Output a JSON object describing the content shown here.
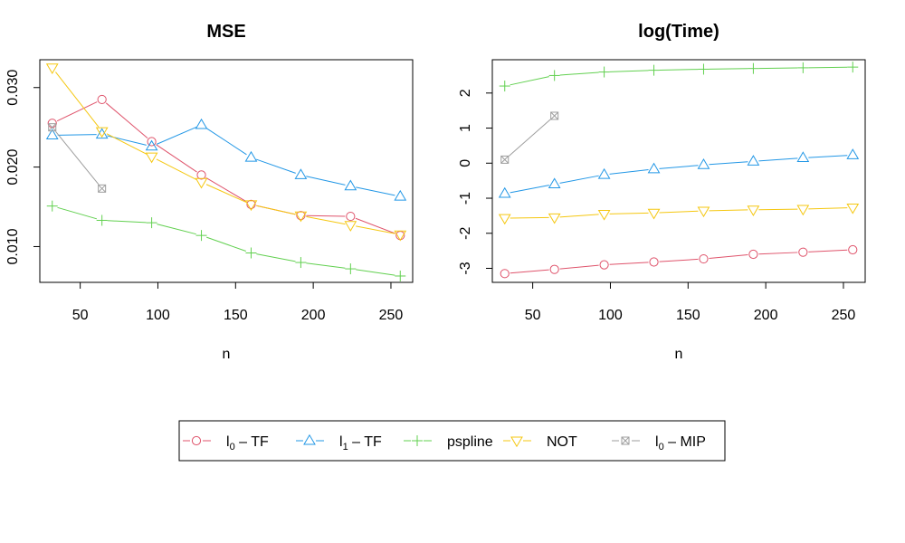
{
  "chart_data": [
    {
      "type": "line",
      "title": "MSE",
      "xlabel": "n",
      "ylabel": "",
      "xlim": [
        24,
        264
      ],
      "ylim": [
        0.0055,
        0.0335
      ],
      "xticks": [
        50,
        100,
        150,
        200,
        250
      ],
      "xtick_labels": [
        "50",
        "100",
        "150",
        "200",
        "250"
      ],
      "yticks": [
        0.01,
        0.02,
        0.03
      ],
      "ytick_labels": [
        "0.010",
        "0.020",
        "0.030"
      ],
      "grid": false,
      "series": [
        {
          "key": "l0tf",
          "values_x": [
            32,
            64,
            96,
            128,
            160,
            192,
            224,
            256
          ],
          "values_y": [
            0.0255,
            0.0285,
            0.0232,
            0.019,
            0.0153,
            0.0139,
            0.0138,
            0.0114
          ]
        },
        {
          "key": "l1tf",
          "values_x": [
            32,
            64,
            96,
            128,
            160,
            192,
            224,
            256
          ],
          "values_y": [
            0.024,
            0.0241,
            0.0226,
            0.0253,
            0.0212,
            0.019,
            0.0176,
            0.0163
          ]
        },
        {
          "key": "pspline",
          "values_x": [
            32,
            64,
            96,
            128,
            160,
            192,
            224,
            256
          ],
          "values_y": [
            0.0151,
            0.0133,
            0.013,
            0.0114,
            0.0092,
            0.008,
            0.0072,
            0.0063
          ]
        },
        {
          "key": "not",
          "values_x": [
            32,
            64,
            96,
            128,
            160,
            192,
            224,
            256
          ],
          "values_y": [
            0.0325,
            0.0245,
            0.0213,
            0.0181,
            0.0153,
            0.0139,
            0.0127,
            0.0115
          ]
        },
        {
          "key": "l0mip",
          "values_x": [
            32,
            64
          ],
          "values_y": [
            0.025,
            0.0173
          ]
        }
      ]
    },
    {
      "type": "line",
      "title": "log(Time)",
      "xlabel": "n",
      "ylabel": "",
      "xlim": [
        24,
        264
      ],
      "ylim": [
        -3.4,
        2.95
      ],
      "xticks": [
        50,
        100,
        150,
        200,
        250
      ],
      "xtick_labels": [
        "50",
        "100",
        "150",
        "200",
        "250"
      ],
      "yticks": [
        -3,
        -2,
        -1,
        0,
        1,
        2
      ],
      "ytick_labels": [
        "-3",
        "-2",
        "-1",
        "0",
        "1",
        "2"
      ],
      "grid": false,
      "series": [
        {
          "key": "l0tf",
          "values_x": [
            32,
            64,
            96,
            128,
            160,
            192,
            224,
            256
          ],
          "values_y": [
            -3.15,
            -3.03,
            -2.9,
            -2.82,
            -2.73,
            -2.6,
            -2.54,
            -2.47
          ]
        },
        {
          "key": "l1tf",
          "values_x": [
            32,
            64,
            96,
            128,
            160,
            192,
            224,
            256
          ],
          "values_y": [
            -0.87,
            -0.6,
            -0.33,
            -0.17,
            -0.05,
            0.05,
            0.15,
            0.23
          ]
        },
        {
          "key": "pspline",
          "values_x": [
            32,
            64,
            96,
            128,
            160,
            192,
            224,
            256
          ],
          "values_y": [
            2.2,
            2.5,
            2.6,
            2.65,
            2.68,
            2.7,
            2.72,
            2.74
          ]
        },
        {
          "key": "not",
          "values_x": [
            32,
            64,
            96,
            128,
            160,
            192,
            224,
            256
          ],
          "values_y": [
            -1.57,
            -1.55,
            -1.45,
            -1.42,
            -1.36,
            -1.33,
            -1.31,
            -1.27
          ]
        },
        {
          "key": "l0mip",
          "values_x": [
            32,
            64
          ],
          "values_y": [
            0.1,
            1.35
          ]
        }
      ]
    }
  ],
  "styles": {
    "l0tf": {
      "color": "#DF536B",
      "marker": "circle"
    },
    "l1tf": {
      "color": "#2297E6",
      "marker": "triangle-up"
    },
    "pspline": {
      "color": "#61D04F",
      "marker": "plus"
    },
    "not": {
      "color": "#F5C710",
      "marker": "triangle-down"
    },
    "l0mip": {
      "color": "#9E9E9E",
      "marker": "boxed-x"
    }
  },
  "legend": {
    "placement": "bottom-center",
    "entries": [
      {
        "key": "l0tf",
        "base": "l",
        "sub": "0",
        "rest": " – TF"
      },
      {
        "key": "l1tf",
        "base": "l",
        "sub": "1",
        "rest": " – TF"
      },
      {
        "key": "pspline",
        "base": "pspline",
        "sub": "",
        "rest": ""
      },
      {
        "key": "not",
        "base": "NOT",
        "sub": "",
        "rest": ""
      },
      {
        "key": "l0mip",
        "base": "l",
        "sub": "0",
        "rest": " – MIP"
      }
    ]
  }
}
